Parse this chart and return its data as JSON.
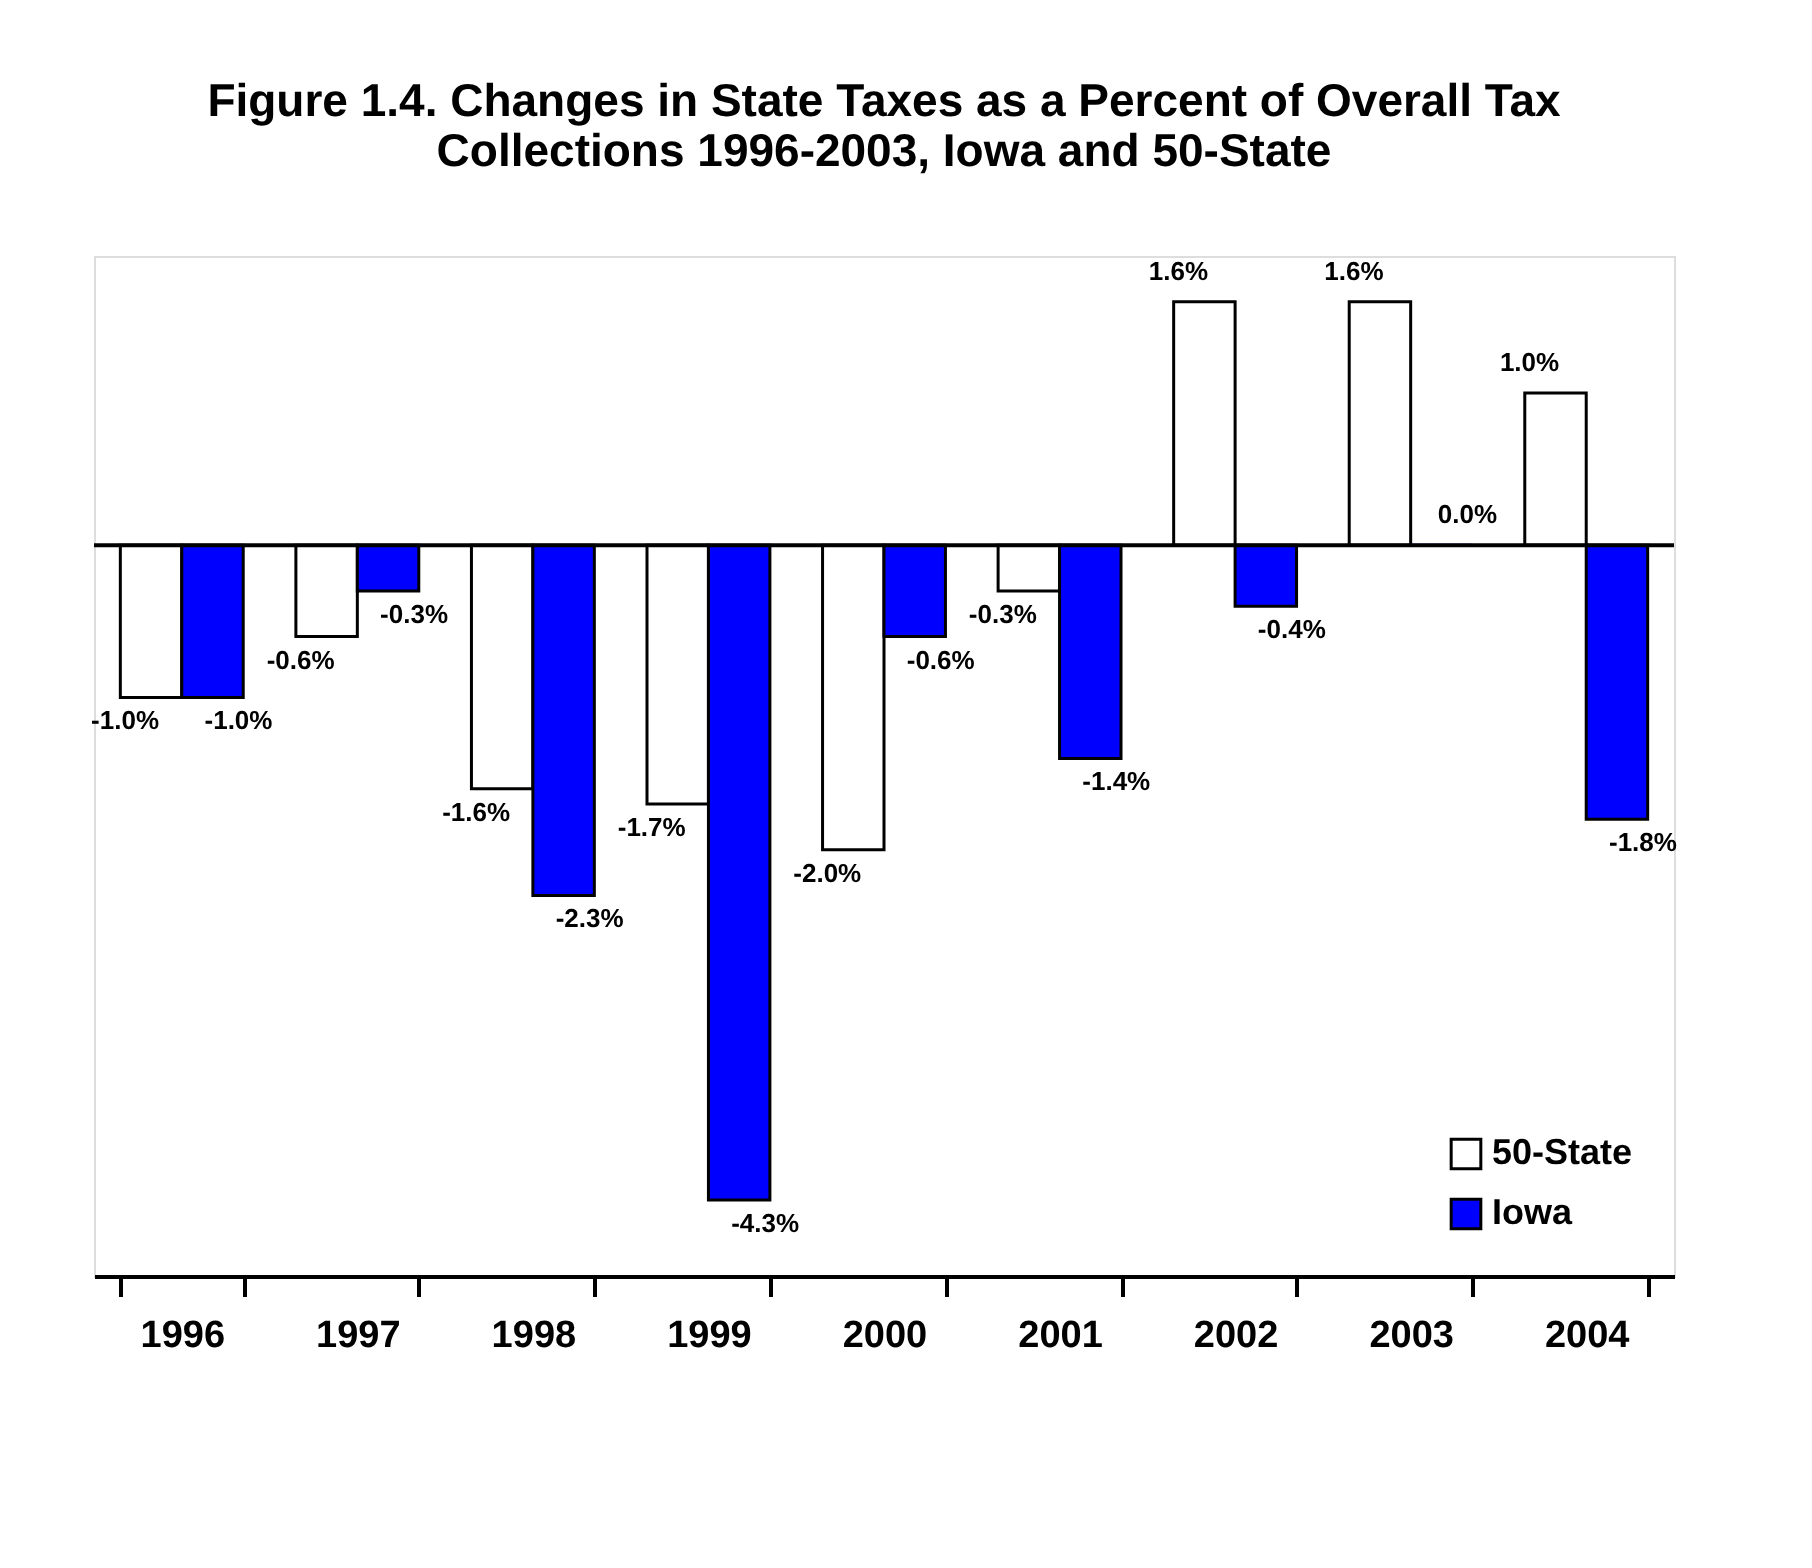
{
  "chart_data": {
    "type": "bar",
    "title": "Figure 1.4. Changes in State Taxes as a Percent of Overall Tax Collections 1996-2003, Iowa and 50-State",
    "categories": [
      "1996",
      "1997",
      "1998",
      "1999",
      "2000",
      "2001",
      "2002",
      "2003",
      "2004"
    ],
    "series": [
      {
        "name": "50-State",
        "color": "#ffffff",
        "values": [
          -1.0,
          -0.6,
          -1.6,
          -1.7,
          -2.0,
          -0.3,
          1.6,
          1.6,
          1.0
        ],
        "value_labels": [
          "-1.0%",
          "-0.6%",
          "-1.6%",
          "-1.7%",
          "-2.0%",
          "-0.3%",
          "1.6%",
          "1.6%",
          "1.0%"
        ]
      },
      {
        "name": "Iowa",
        "color": "#0000ff",
        "values": [
          -1.0,
          -0.3,
          -2.3,
          -4.3,
          -0.6,
          -1.4,
          -0.4,
          0.0,
          -1.8
        ],
        "value_labels": [
          "-1.0%",
          "-0.3%",
          "-2.3%",
          "-4.3%",
          "-0.6%",
          "-1.4%",
          "-0.4%",
          "0.0%",
          "-1.8%"
        ]
      }
    ],
    "ylim": [
      -4.8,
      1.9
    ],
    "ref_lines": [
      {
        "axis": "y",
        "value": 0
      }
    ],
    "legend": "bottom right",
    "grid": false,
    "tick_labels": "x"
  }
}
